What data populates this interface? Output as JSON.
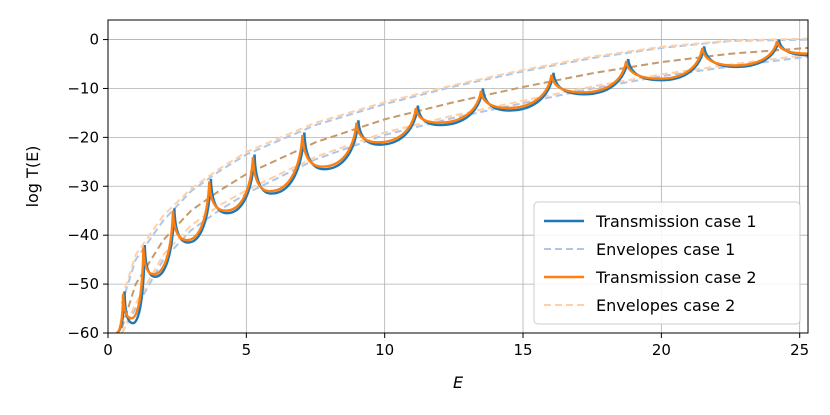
{
  "chart_data": {
    "type": "line",
    "xlabel": "E",
    "ylabel": "log T(E)",
    "xlim": [
      0,
      25.3
    ],
    "ylim": [
      -60,
      4
    ],
    "xticks": [
      0,
      5,
      10,
      15,
      20,
      25
    ],
    "yticks": [
      0,
      -10,
      -20,
      -30,
      -40,
      -50,
      -60
    ],
    "grid": true,
    "legend_position": "lower-right",
    "resonances_case1": [
      0.6,
      1.33,
      2.4,
      3.72,
      5.3,
      7.1,
      9.05,
      11.2,
      13.55,
      16.1,
      18.8,
      21.55,
      24.25
    ],
    "resonances_case2": [
      0.55,
      1.28,
      2.35,
      3.66,
      5.24,
      7.03,
      8.98,
      11.13,
      13.48,
      16.03,
      18.73,
      21.48,
      24.18
    ],
    "series": [
      {
        "name": "Transmission case 1",
        "color": "#1f77b4",
        "style": "solid",
        "x": [
          0.3,
          0.6,
          0.9,
          1.33,
          1.7,
          2.4,
          2.9,
          3.72,
          4.3,
          5.3,
          5.9,
          7.1,
          7.8,
          9.05,
          9.8,
          11.2,
          12.0,
          13.55,
          14.5,
          16.1,
          17.2,
          18.8,
          20.0,
          21.55,
          22.7,
          24.25,
          25.3
        ],
        "y": [
          -60,
          -51.5,
          -58,
          -42,
          -48.5,
          -34.5,
          -41.5,
          -28.5,
          -35.5,
          -23.5,
          -31.5,
          -19,
          -26.5,
          -16.5,
          -21.5,
          -13.5,
          -17.5,
          -10,
          -14.5,
          -6.8,
          -11.2,
          -4,
          -8.3,
          -1.4,
          -5.6,
          0,
          -3.2
        ]
      },
      {
        "name": "Envelopes case 1",
        "color": "#aec7e8",
        "style": "dashed",
        "x": [
          0.5,
          1,
          2,
          3,
          4,
          5,
          7.5,
          10,
          12.5,
          15,
          17.5,
          20,
          22.5,
          25.3
        ],
        "upper": [
          -54,
          -45,
          -37,
          -31,
          -27,
          -23.5,
          -17.5,
          -13.2,
          -9.6,
          -6.5,
          -3.8,
          -1.7,
          -0.3,
          0
        ],
        "lower": [
          -64,
          -55,
          -45,
          -39,
          -35,
          -31.5,
          -24.5,
          -19.5,
          -16,
          -13,
          -10,
          -7.5,
          -5.5,
          -3.5
        ]
      },
      {
        "name": "Transmission case 2",
        "color": "#ff7f0e",
        "style": "solid",
        "x": [
          0.3,
          0.55,
          0.85,
          1.28,
          1.65,
          2.35,
          2.85,
          3.66,
          4.25,
          5.24,
          5.85,
          7.03,
          7.75,
          8.98,
          9.75,
          11.13,
          11.95,
          13.48,
          14.45,
          16.03,
          17.15,
          18.73,
          19.95,
          21.48,
          22.65,
          24.18,
          25.3
        ],
        "y": [
          -60,
          -52,
          -57,
          -42.5,
          -48,
          -35,
          -41,
          -29,
          -35,
          -24,
          -31,
          -19.5,
          -26,
          -17,
          -21,
          -14,
          -17,
          -10.5,
          -14,
          -7.2,
          -10.8,
          -4.4,
          -8,
          -1.7,
          -5.3,
          -0.3,
          -2.9
        ]
      },
      {
        "name": "Envelopes case 2",
        "color": "#ffd0a8",
        "style": "dashed",
        "x": [
          0.5,
          1,
          2,
          3,
          4,
          5,
          7.5,
          10,
          12.5,
          15,
          17.5,
          20,
          22.5,
          25.3
        ],
        "upper": [
          -53,
          -44,
          -36,
          -30.5,
          -26.5,
          -23,
          -17,
          -12.8,
          -9.3,
          -6.2,
          -3.5,
          -1.5,
          -0.2,
          0.2
        ],
        "lower": [
          -63,
          -54,
          -44,
          -38,
          -34,
          -30.8,
          -24,
          -19,
          -15.5,
          -12.5,
          -9.6,
          -7.1,
          -5.1,
          -3.1
        ]
      }
    ],
    "midline": {
      "color": "#c49a6c",
      "style": "dashed",
      "x": [
        0.5,
        1,
        2,
        3,
        4,
        5,
        7.5,
        10,
        12.5,
        15,
        17.5,
        20,
        22.5,
        25.3
      ],
      "y": [
        -59,
        -50,
        -41,
        -35,
        -31,
        -27.5,
        -21,
        -16.3,
        -12.8,
        -9.7,
        -6.9,
        -4.6,
        -2.9,
        -1.7
      ]
    }
  }
}
